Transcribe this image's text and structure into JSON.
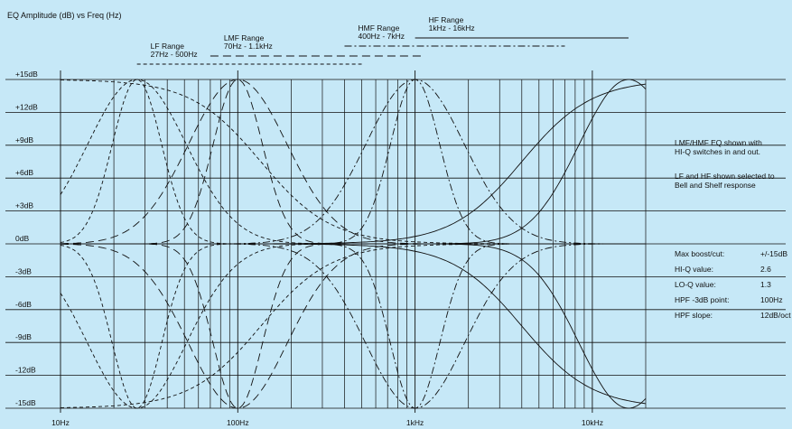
{
  "chart_data": {
    "type": "line",
    "title": "EQ Amplitude (dB) vs Freq (Hz)",
    "xlabel": "",
    "ylabel": "",
    "x_scale": "log",
    "xlim": [
      10,
      20000
    ],
    "ylim": [
      -15,
      15
    ],
    "x_ticks": [
      {
        "value": 10,
        "label": "10Hz"
      },
      {
        "value": 100,
        "label": "100Hz"
      },
      {
        "value": 1000,
        "label": "1kHz"
      },
      {
        "value": 10000,
        "label": "10kHz"
      }
    ],
    "y_ticks": [
      {
        "value": 15,
        "label": "+15dB"
      },
      {
        "value": 12,
        "label": "+12dB"
      },
      {
        "value": 9,
        "label": "+9dB"
      },
      {
        "value": 6,
        "label": "+6dB"
      },
      {
        "value": 3,
        "label": "+3dB"
      },
      {
        "value": 0,
        "label": "0dB"
      },
      {
        "value": -3,
        "label": "-3dB"
      },
      {
        "value": -6,
        "label": "-6dB"
      },
      {
        "value": -9,
        "label": "-9dB"
      },
      {
        "value": -12,
        "label": "-12dB"
      },
      {
        "value": -15,
        "label": "-15dB"
      }
    ],
    "grid": true,
    "ranges": [
      {
        "label": "LF Range",
        "sub": "27Hz - 500Hz",
        "from": 27,
        "to": 500,
        "dash": "dashed"
      },
      {
        "label": "LMF Range",
        "sub": "70Hz - 1.1kHz",
        "from": 70,
        "to": 1100,
        "dash": "long-dash"
      },
      {
        "label": "HMF Range",
        "sub": "400Hz - 7kHz",
        "from": 400,
        "to": 7000,
        "dash": "dash-dot"
      },
      {
        "label": "HF Range",
        "sub": "1kHz - 16kHz",
        "from": 1000,
        "to": 16000,
        "dash": "solid"
      }
    ],
    "series": [
      {
        "family": "LF",
        "style": "dashed",
        "shape": "bell",
        "f0": 27,
        "gain_db": 15,
        "q": 2.6
      },
      {
        "family": "LF",
        "style": "dashed",
        "shape": "bell",
        "f0": 27,
        "gain_db": -15,
        "q": 2.6
      },
      {
        "family": "LF",
        "style": "dashed",
        "shape": "bell",
        "f0": 27,
        "gain_db": 15,
        "q": 1.3
      },
      {
        "family": "LF",
        "style": "dashed",
        "shape": "bell",
        "f0": 27,
        "gain_db": -15,
        "q": 1.3
      },
      {
        "family": "LF",
        "style": "dashed",
        "shape": "shelf",
        "f0": 27,
        "gain_db": 15
      },
      {
        "family": "LF",
        "style": "dashed",
        "shape": "shelf",
        "f0": 27,
        "gain_db": -15
      },
      {
        "family": "LMF",
        "style": "long-dash",
        "shape": "bell",
        "f0": 100,
        "gain_db": 15,
        "q": 2.6
      },
      {
        "family": "LMF",
        "style": "long-dash",
        "shape": "bell",
        "f0": 100,
        "gain_db": -15,
        "q": 2.6
      },
      {
        "family": "LMF",
        "style": "long-dash",
        "shape": "bell",
        "f0": 100,
        "gain_db": 15,
        "q": 1.3
      },
      {
        "family": "LMF",
        "style": "long-dash",
        "shape": "bell",
        "f0": 100,
        "gain_db": -15,
        "q": 1.3
      },
      {
        "family": "HMF",
        "style": "dash-dot",
        "shape": "bell",
        "f0": 1000,
        "gain_db": 15,
        "q": 2.6
      },
      {
        "family": "HMF",
        "style": "dash-dot",
        "shape": "bell",
        "f0": 1000,
        "gain_db": -15,
        "q": 2.6
      },
      {
        "family": "HMF",
        "style": "dash-dot",
        "shape": "bell",
        "f0": 1000,
        "gain_db": 15,
        "q": 1.3
      },
      {
        "family": "HMF",
        "style": "dash-dot",
        "shape": "bell",
        "f0": 1000,
        "gain_db": -15,
        "q": 1.3
      },
      {
        "family": "HF",
        "style": "solid",
        "shape": "bell",
        "f0": 16000,
        "gain_db": 15,
        "q": 1.3
      },
      {
        "family": "HF",
        "style": "solid",
        "shape": "bell",
        "f0": 16000,
        "gain_db": -15,
        "q": 1.3
      },
      {
        "family": "HF",
        "style": "solid",
        "shape": "shelf",
        "f0": 16000,
        "gain_db": 15
      },
      {
        "family": "HF",
        "style": "solid",
        "shape": "shelf",
        "f0": 16000,
        "gain_db": -15
      }
    ],
    "background_color": "#c6e8f7",
    "line_color": "#111111"
  },
  "notes": {
    "line1": "LMF/HMF EQ shown with",
    "line2": "HI-Q switches in and out.",
    "line3": "LF and HF shown selected to",
    "line4": "Bell and Shelf response"
  },
  "specs": [
    {
      "label": "Max boost/cut:",
      "value": "+/-15dB"
    },
    {
      "label": "HI-Q value:",
      "value": "2.6"
    },
    {
      "label": "LO-Q value:",
      "value": "1.3"
    },
    {
      "label": "HPF -3dB point:",
      "value": "100Hz"
    },
    {
      "label": "HPF slope:",
      "value": "12dB/oct"
    }
  ]
}
